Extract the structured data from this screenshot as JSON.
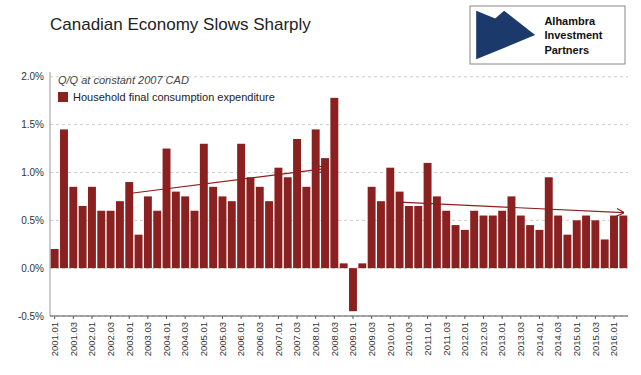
{
  "chart_data": {
    "type": "bar",
    "title": "Canadian Economy Slows Sharply",
    "subtitle": "Q/Q at constant 2007 CAD",
    "categories": [
      "2001.01",
      null,
      "2001.03",
      null,
      "2002.01",
      null,
      "2002.03",
      null,
      "2003.01",
      null,
      "2003.03",
      null,
      "2004.01",
      null,
      "2004.03",
      null,
      "2005.01",
      null,
      "2005.03",
      null,
      "2006.01",
      null,
      "2006.03",
      null,
      "2007.01",
      null,
      "2007.03",
      null,
      "2008.01",
      null,
      "2008.03",
      null,
      "2009.01",
      null,
      "2009.03",
      null,
      "2010.01",
      null,
      "2010.03",
      null,
      "2011.01",
      null,
      "2011.03",
      null,
      "2012.01",
      null,
      "2012.03",
      null,
      "2013.01",
      null,
      "2013.03",
      null,
      "2014.01",
      null,
      "2014.03",
      null,
      "2015.01",
      null,
      "2015.03",
      null,
      "2016.01",
      null
    ],
    "series": [
      {
        "name": "Household final consumption expenditure",
        "color": "#8B2020",
        "values": [
          0.002,
          0.0145,
          0.0085,
          0.0065,
          0.0085,
          0.006,
          0.006,
          0.007,
          0.009,
          0.0035,
          0.0075,
          0.006,
          0.0125,
          0.008,
          0.0075,
          0.006,
          0.013,
          0.0085,
          0.0075,
          0.007,
          0.013,
          0.0095,
          0.0085,
          0.007,
          0.0105,
          0.0095,
          0.0135,
          0.0085,
          0.0145,
          0.0115,
          0.0178,
          0.0005,
          -0.0045,
          0.0005,
          0.0085,
          0.007,
          0.0105,
          0.008,
          0.0065,
          0.0065,
          0.011,
          0.0075,
          0.006,
          0.0045,
          0.004,
          0.006,
          0.0055,
          0.0055,
          0.006,
          0.0075,
          0.0055,
          0.0045,
          0.004,
          0.0095,
          0.0055,
          0.0035,
          0.005,
          0.0055,
          0.005,
          0.003,
          0.0055,
          0.0055
        ]
      }
    ],
    "ylim": [
      -0.005,
      0.0205
    ],
    "yticks": [
      {
        "value": -0.005,
        "label": "-0.5%"
      },
      {
        "value": 0.0,
        "label": "0.0%"
      },
      {
        "value": 0.005,
        "label": "0.5%"
      },
      {
        "value": 0.01,
        "label": "1.0%"
      },
      {
        "value": 0.015,
        "label": "1.5%"
      },
      {
        "value": 0.02,
        "label": "2.0%"
      }
    ],
    "grid": true,
    "legend": "upper left",
    "annotations": [
      {
        "type": "arrow",
        "x0": 8,
        "y0": 0.0078,
        "x1": 29,
        "y1": 0.0104
      },
      {
        "type": "arrow",
        "x0": 37,
        "y0": 0.0069,
        "x1": 61,
        "y1": 0.0058
      },
      {
        "type": "logo",
        "lines": [
          "Alhambra",
          "Investment",
          "Partners"
        ]
      }
    ]
  }
}
